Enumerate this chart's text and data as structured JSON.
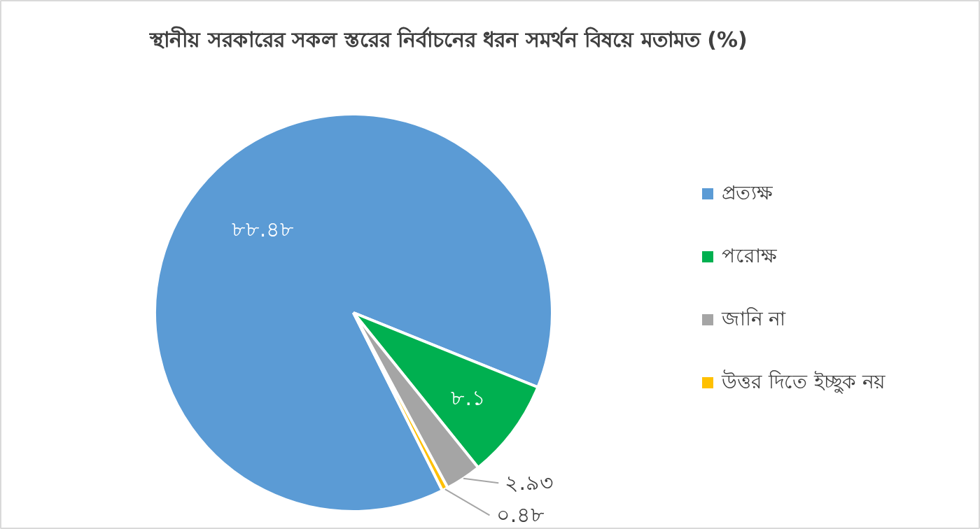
{
  "chart_data": {
    "type": "pie",
    "title": "স্থানীয় সরকারের সকল স্তরের নির্বাচনের ধরন সমর্থন বিষয়ে মতামত (%)",
    "categories": [
      "প্রত্যক্ষ",
      "পরোক্ষ",
      "জানি না",
      "উত্তর দিতে ইচ্ছুক নয়"
    ],
    "values": [
      88.48,
      8.1,
      2.93,
      0.48
    ],
    "colors": [
      "#5b9bd5",
      "#00b050",
      "#a5a5a5",
      "#ffc000"
    ],
    "value_labels": [
      "৮৮.৪৮",
      "৮.১",
      "২.৯৩",
      "০.৪৮"
    ],
    "legend": "right"
  }
}
